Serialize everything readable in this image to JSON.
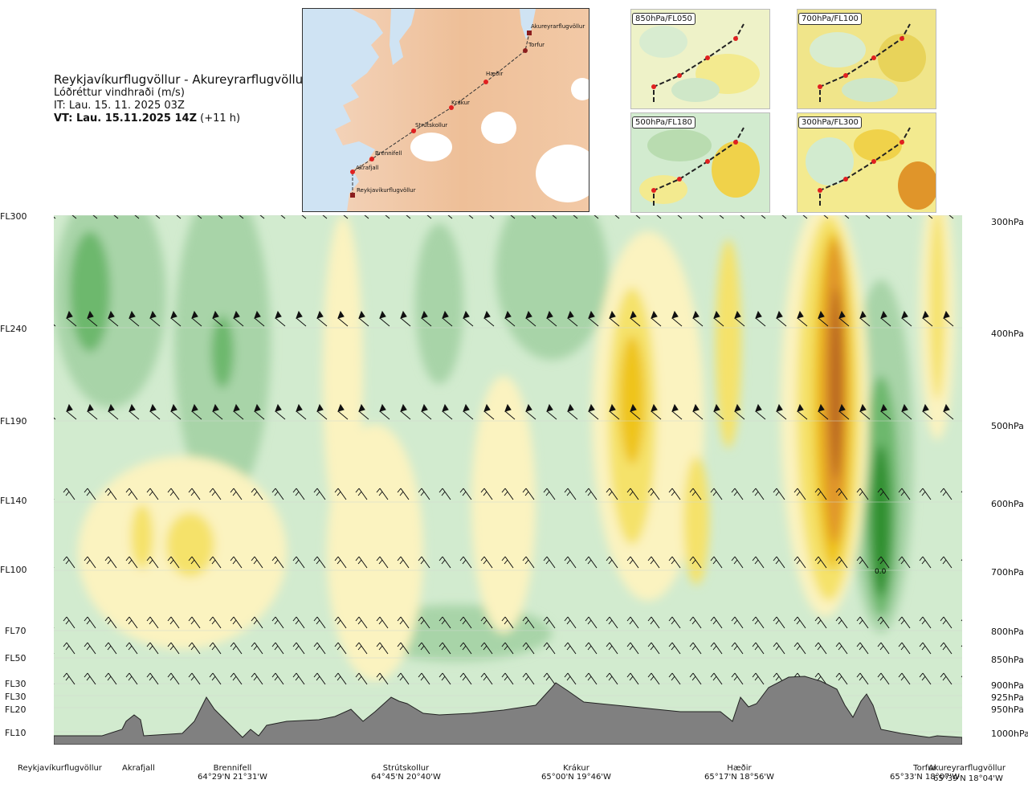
{
  "title": {
    "route": "Reykjavíkurflugvöllur - Akureyrarflugvöllur",
    "variable": "Lóðréttur vindhraði (m/s)",
    "it": "IT: Lau. 15. 11. 2025 03Z",
    "vt_bold": "VT: Lau. 15.11.2025 14Z",
    "vt_offset": "(+11 h)"
  },
  "map": {
    "stations": [
      {
        "name": "Akureyrarflugvöllur"
      },
      {
        "name": "Torfur"
      },
      {
        "name": "Hæðir"
      },
      {
        "name": "Krákur"
      },
      {
        "name": "Strútskollur"
      },
      {
        "name": "Brennifell"
      },
      {
        "name": "Akrafjall"
      },
      {
        "name": "Reykjavíkurflugvöllur"
      }
    ]
  },
  "insets": [
    {
      "label": "850hPa/FL050"
    },
    {
      "label": "700hPa/FL100"
    },
    {
      "label": "500hPa/FL180"
    },
    {
      "label": "300hPa/FL300"
    }
  ],
  "flight_levels": [
    "FL300",
    "FL240",
    "FL190",
    "FL140",
    "FL100",
    "FL70",
    "FL50",
    "FL30",
    "FL30",
    "FL20",
    "FL10"
  ],
  "pressure_levels": [
    "300hPa",
    "400hPa",
    "500hPa",
    "600hPa",
    "700hPa",
    "800hPa",
    "850hPa",
    "900hPa",
    "925hPa",
    "950hPa",
    "1000hPa"
  ],
  "bottom_labels": [
    {
      "name": "Reykjavíkurflugvöllur",
      "coord": ""
    },
    {
      "name": "Akrafjall",
      "coord": ""
    },
    {
      "name": "Brennifell",
      "coord": "64°29'N 21°31'W"
    },
    {
      "name": "Strútskollur",
      "coord": "64°45'N 20°40'W"
    },
    {
      "name": "Krákur",
      "coord": "65°00'N 19°46'W"
    },
    {
      "name": "Hæðir",
      "coord": "65°17'N 18°56'W"
    },
    {
      "name": "Torfur",
      "coord": "65°33'N 18°07'W"
    },
    {
      "name": "Akureyrarflugvöllur",
      "coord": "65°39'N 18°04'W"
    }
  ],
  "annotation": "0.0",
  "colors": {
    "strong_sink": "#2f8f2f",
    "sink": "#6db86d",
    "weak_sink": "#a8d4a8",
    "very_weak_sink": "#d2ebcf",
    "neutral": "#ffffff",
    "weak_rise": "#fbf3c0",
    "rise": "#f5e26a",
    "strong_rise": "#efc41a",
    "very_strong_rise": "#e0952a",
    "extreme_rise": "#b8661e",
    "terrain": "#808080"
  }
}
